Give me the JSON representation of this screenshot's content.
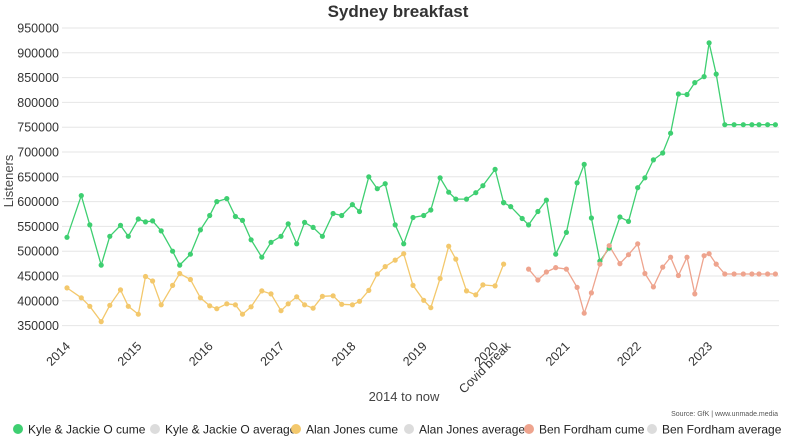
{
  "chart_data": {
    "type": "line",
    "title": "Sydney breakfast",
    "xlabel": "2014 to now",
    "ylabel": "Listeners",
    "source": "Source: GfK | www.unmade.media",
    "ylim": [
      325000,
      950000
    ],
    "y_ticks": [
      350000,
      400000,
      450000,
      500000,
      550000,
      600000,
      650000,
      700000,
      750000,
      800000,
      850000,
      900000,
      950000
    ],
    "y_tick_labels": [
      "350000",
      "400000",
      "450000",
      "500000",
      "550000",
      "600000",
      "650000",
      "700000",
      "750000",
      "800000",
      "850000",
      "900000",
      "950000"
    ],
    "xlim": [
      2013.93,
      2023.98
    ],
    "x_ticks": [
      {
        "x": 2014.0,
        "label": "2014"
      },
      {
        "x": 2015.0,
        "label": "2015"
      },
      {
        "x": 2016.0,
        "label": "2016"
      },
      {
        "x": 2017.0,
        "label": "2017"
      },
      {
        "x": 2018.0,
        "label": "2018"
      },
      {
        "x": 2019.0,
        "label": "2019"
      },
      {
        "x": 2020.0,
        "label": "2020"
      },
      {
        "x": 2020.17,
        "label": "Covid break"
      },
      {
        "x": 2021.0,
        "label": "2021"
      },
      {
        "x": 2022.0,
        "label": "2022"
      },
      {
        "x": 2023.0,
        "label": "2023"
      }
    ],
    "grid": true,
    "legend_position": "bottom",
    "series": [
      {
        "name": "Kyle & Jackie O cume",
        "color": "#3ecf71",
        "segments": [
          {
            "x": [
              2014.0,
              2014.2,
              2014.32,
              2014.48,
              2014.6,
              2014.75,
              2014.86,
              2015.0,
              2015.1,
              2015.2,
              2015.32,
              2015.48,
              2015.58,
              2015.73,
              2015.87,
              2016.0,
              2016.1,
              2016.24,
              2016.36,
              2016.46,
              2016.58,
              2016.73,
              2016.86,
              2017.0,
              2017.1,
              2017.22,
              2017.33,
              2017.45,
              2017.58,
              2017.73,
              2017.85,
              2018.0,
              2018.1,
              2018.23,
              2018.35,
              2018.46,
              2018.6,
              2018.72,
              2018.85,
              2019.0,
              2019.1,
              2019.23,
              2019.35,
              2019.45,
              2019.6,
              2019.73,
              2019.83,
              2020.0,
              2020.12
            ],
            "y": [
              528000,
              612000,
              553000,
              472000,
              530000,
              552000,
              530000,
              565000,
              559000,
              561000,
              541000,
              500000,
              472000,
              494000,
              543000,
              572000,
              600000,
              606000,
              570000,
              562000,
              523000,
              488000,
              518000,
              530000,
              555000,
              515000,
              558000,
              548000,
              530000,
              576000,
              572000,
              594000,
              580000,
              650000,
              626000,
              636000,
              553000,
              515000,
              568000,
              572000,
              583000,
              648000,
              619000,
              605000,
              605000,
              618000,
              632000,
              665000,
              598000
            ]
          },
          {
            "x": [
              2020.12,
              2020.22,
              2020.38,
              2020.47,
              2020.6,
              2020.72,
              2020.85,
              2021.0,
              2021.15,
              2021.25,
              2021.35,
              2021.47,
              2021.6,
              2021.75,
              2021.87,
              2022.0,
              2022.1,
              2022.22,
              2022.35,
              2022.46,
              2022.57,
              2022.69,
              2022.8,
              2022.93,
              2023.0,
              2023.1,
              2023.22,
              2023.35,
              2023.48,
              2023.6,
              2023.7,
              2023.82,
              2023.93
            ],
            "y": [
              598000,
              590000,
              566000,
              553000,
              580000,
              603000,
              494000,
              538000,
              638000,
              675000,
              567000,
              480000,
              506000,
              569000,
              560000,
              628000,
              648000,
              684000,
              698000,
              738000,
              817000,
              816000,
              840000,
              852000,
              920000,
              857000,
              755000,
              755000,
              755000,
              755000,
              755000,
              755000,
              755000
            ]
          }
        ]
      },
      {
        "name": "Kyle & Jackie O average",
        "color": "#dcdcdc",
        "segments": []
      },
      {
        "name": "Alan Jones cume",
        "color": "#f3c86c",
        "segments": [
          {
            "x": [
              2014.0,
              2014.2,
              2014.32,
              2014.48,
              2014.6,
              2014.75,
              2014.86,
              2015.0,
              2015.1,
              2015.2,
              2015.32,
              2015.48,
              2015.58,
              2015.73,
              2015.87,
              2016.0,
              2016.1,
              2016.24,
              2016.36,
              2016.46,
              2016.58,
              2016.73,
              2016.86,
              2017.0,
              2017.1,
              2017.22,
              2017.33,
              2017.45,
              2017.58,
              2017.73,
              2017.85,
              2018.0,
              2018.1,
              2018.23,
              2018.35,
              2018.46,
              2018.6,
              2018.72,
              2018.85,
              2019.0,
              2019.1,
              2019.23,
              2019.35,
              2019.45,
              2019.6,
              2019.73,
              2019.83,
              2020.0,
              2020.12
            ],
            "y": [
              426000,
              406000,
              389000,
              358000,
              391000,
              422000,
              389000,
              373000,
              449000,
              440000,
              392000,
              431000,
              455000,
              443000,
              406000,
              390000,
              384000,
              394000,
              392000,
              373000,
              388000,
              420000,
              414000,
              380000,
              394000,
              408000,
              392000,
              385000,
              409000,
              410000,
              393000,
              392000,
              399000,
              421000,
              454000,
              469000,
              482000,
              495000,
              431000,
              401000,
              386000,
              445000,
              510000,
              484000,
              420000,
              412000,
              432000,
              430000,
              474000
            ]
          }
        ]
      },
      {
        "name": "Alan Jones average",
        "color": "#dcdcdc",
        "segments": []
      },
      {
        "name": "Ben Fordham cume",
        "color": "#eea48e",
        "segments": [
          {
            "x": [
              2020.47,
              2020.6,
              2020.72,
              2020.85,
              2021.0,
              2021.15,
              2021.25,
              2021.35,
              2021.47,
              2021.6,
              2021.75,
              2021.87,
              2022.0,
              2022.1,
              2022.22,
              2022.35,
              2022.46,
              2022.57,
              2022.69,
              2022.8,
              2022.93,
              2023.0,
              2023.1,
              2023.22,
              2023.35,
              2023.48,
              2023.6,
              2023.7,
              2023.82,
              2023.93
            ],
            "y": [
              464000,
              442000,
              458000,
              467000,
              464000,
              427000,
              375000,
              416000,
              474000,
              511000,
              475000,
              493000,
              515000,
              455000,
              428000,
              468000,
              488000,
              451000,
              488000,
              414000,
              491000,
              495000,
              474000,
              454000,
              454000,
              454000,
              454000,
              454000,
              454000,
              454000
            ]
          }
        ]
      },
      {
        "name": "Ben Fordham average",
        "color": "#dcdcdc",
        "segments": []
      }
    ]
  }
}
